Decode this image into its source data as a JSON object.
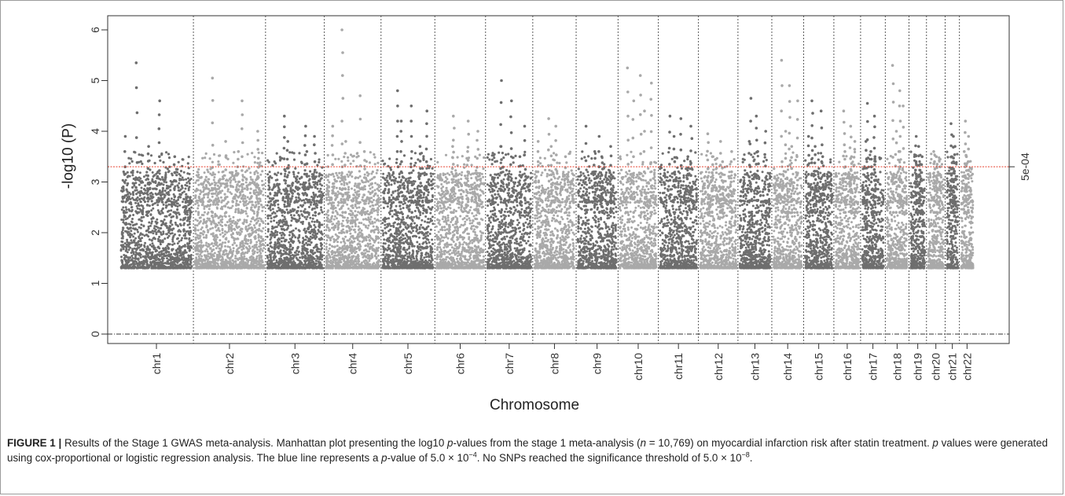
{
  "chart_data": {
    "type": "scatter",
    "subtype": "manhattan",
    "xlabel": "Chromosome",
    "ylabel": "-log10 (P)",
    "ylim": [
      0,
      6
    ],
    "yticks": [
      0,
      1,
      2,
      3,
      4,
      5,
      6
    ],
    "threshold": {
      "value": 3.3,
      "label": "5e-04",
      "color": "#e8402f"
    },
    "baseline": 0,
    "min_plotted": 1.3,
    "colors": {
      "dark": "#6e6e6e",
      "light": "#a9a9a9"
    },
    "chromosomes": [
      {
        "label": "chr1",
        "peaks": [
          5.35,
          4.6,
          3.9,
          3.7,
          3.5
        ]
      },
      {
        "label": "chr2",
        "peaks": [
          5.05,
          4.6,
          4.0,
          3.8,
          3.6
        ]
      },
      {
        "label": "chr3",
        "peaks": [
          4.3,
          4.1,
          3.9,
          3.8,
          3.6
        ]
      },
      {
        "label": "chr4",
        "peaks": [
          6.0,
          4.7,
          4.1,
          3.8,
          3.6
        ]
      },
      {
        "label": "chr5",
        "peaks": [
          4.8,
          4.5,
          4.4,
          4.2,
          3.7
        ]
      },
      {
        "label": "chr6",
        "peaks": [
          4.3,
          4.2,
          4.0,
          3.7,
          3.6
        ]
      },
      {
        "label": "chr7",
        "peaks": [
          5.0,
          4.6,
          4.1,
          3.7,
          3.5
        ]
      },
      {
        "label": "chr8",
        "peaks": [
          4.25,
          4.1,
          3.8,
          3.7,
          3.5
        ]
      },
      {
        "label": "chr9",
        "peaks": [
          4.1,
          3.9,
          3.7,
          3.6,
          3.5
        ]
      },
      {
        "label": "chr10",
        "peaks": [
          5.25,
          5.1,
          4.95,
          4.6,
          4.4
        ]
      },
      {
        "label": "chr11",
        "peaks": [
          4.3,
          4.25,
          4.1,
          3.9,
          3.5
        ]
      },
      {
        "label": "chr12",
        "peaks": [
          3.95,
          3.8,
          3.6,
          3.5,
          3.4
        ]
      },
      {
        "label": "chr13",
        "peaks": [
          4.65,
          4.3,
          4.0,
          3.8,
          3.6
        ]
      },
      {
        "label": "chr14",
        "peaks": [
          5.4,
          4.9,
          4.6,
          4.0,
          3.7
        ]
      },
      {
        "label": "chr15",
        "peaks": [
          4.6,
          4.4,
          3.9,
          3.7,
          3.5
        ]
      },
      {
        "label": "chr16",
        "peaks": [
          4.4,
          4.1,
          3.8,
          3.6,
          3.5
        ]
      },
      {
        "label": "chr17",
        "peaks": [
          4.55,
          4.3,
          3.8,
          3.6,
          3.5
        ]
      },
      {
        "label": "chr18",
        "peaks": [
          5.3,
          4.8,
          4.5,
          4.0,
          3.6
        ]
      },
      {
        "label": "chr19",
        "peaks": [
          3.9,
          3.7,
          3.5,
          3.4,
          3.35
        ]
      },
      {
        "label": "chr20",
        "peaks": [
          3.6,
          3.5,
          3.45,
          3.4,
          3.35
        ]
      },
      {
        "label": "chr21",
        "peaks": [
          4.15,
          3.9,
          3.7,
          3.5,
          3.4
        ]
      },
      {
        "label": "chr22",
        "peaks": [
          4.2,
          3.9,
          3.6,
          3.5,
          3.4
        ]
      }
    ]
  },
  "caption": {
    "label": "FIGURE 1 |",
    "segments": [
      {
        "text": " Results of the Stage 1 GWAS meta-analysis. Manhattan plot presenting the log10 ",
        "italic": false
      },
      {
        "text": "p",
        "italic": true
      },
      {
        "text": "-values from the stage 1 meta-analysis (",
        "italic": false
      },
      {
        "text": "n",
        "italic": true
      },
      {
        "text": " = 10,769) on myocardial infarction risk after statin treatment. ",
        "italic": false
      },
      {
        "text": "p",
        "italic": true
      },
      {
        "text": " values were generated using cox-proportional or logistic regression analysis. The blue line represents a ",
        "italic": false
      },
      {
        "text": "p",
        "italic": true
      },
      {
        "text": "-value of 5.0 × 10",
        "italic": false
      },
      {
        "text": "−4",
        "italic": false,
        "sup": true
      },
      {
        "text": ". No SNPs reached the significance threshold of 5.0 × 10",
        "italic": false
      },
      {
        "text": "−8",
        "italic": false,
        "sup": true
      },
      {
        "text": ".",
        "italic": false
      }
    ]
  }
}
